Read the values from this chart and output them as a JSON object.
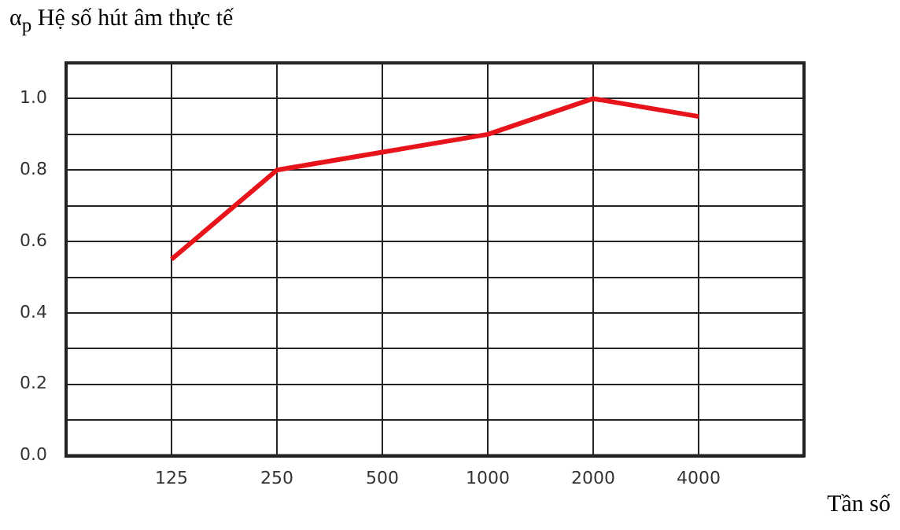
{
  "chart_data": {
    "type": "line",
    "title": "α$_{p}$ Hệ số hút âm thực tế",
    "xlabel": "Tần số",
    "categories": [
      null,
      "125",
      "250",
      "500",
      "1000",
      "2000",
      "4000",
      null
    ],
    "series": [
      {
        "color": "#e8141b",
        "values": [
          null,
          0.55,
          0.8,
          0.85,
          0.9,
          1.0,
          0.95,
          null
        ]
      }
    ],
    "ylim": [
      0,
      1.1
    ],
    "yticks": [
      {
        "value": 0,
        "label": "0.0"
      },
      {
        "value": 0.1,
        "label": null
      },
      0.2,
      {
        "value": 0.3,
        "label": null
      },
      0.4,
      {
        "value": 0.5,
        "label": null
      },
      0.6,
      {
        "value": 0.7,
        "label": null
      },
      0.8,
      {
        "value": 0.9,
        "label": null
      },
      {
        "value": 1,
        "label": "1.0"
      },
      {
        "value": 1.1,
        "label": null
      }
    ],
    "grid": true
  }
}
